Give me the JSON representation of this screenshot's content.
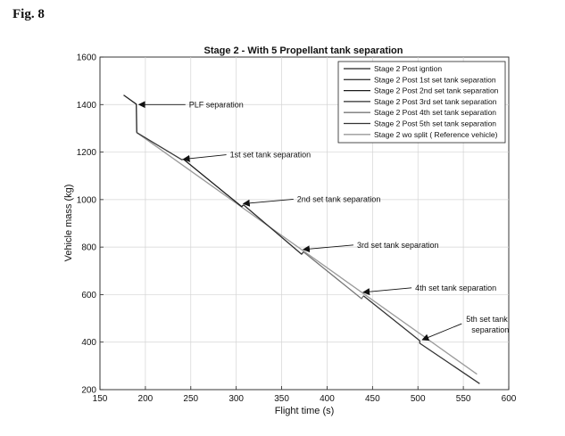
{
  "figure_label": "Fig. 8",
  "chart_data": {
    "type": "line",
    "title": "Stage 2 - With 5 Propellant tank separation",
    "xlabel": "Flight time (s)",
    "ylabel": "Vehicle mass (kg)",
    "xlim": [
      150,
      600
    ],
    "ylim": [
      200,
      1600
    ],
    "xticks": [
      150,
      200,
      250,
      300,
      350,
      400,
      450,
      500,
      550,
      600
    ],
    "yticks": [
      200,
      400,
      600,
      800,
      1000,
      1200,
      1400,
      1600
    ],
    "grid": true,
    "legend_position": "top-right",
    "series": [
      {
        "name": "Stage 2 Post igntion",
        "color": "#222222",
        "x": [
          176,
          190,
          190,
          190.5
        ],
        "y": [
          1440,
          1402,
          1402,
          1282
        ]
      },
      {
        "name": "Stage 2 Post 1st set tank separation",
        "color": "#3a3a3a",
        "x": [
          190.5,
          240,
          242
        ],
        "y": [
          1282,
          1168,
          1170
        ]
      },
      {
        "name": "Stage 2 Post 2nd set tank separation",
        "color": "#1a1a1a",
        "x": [
          242,
          306,
          308
        ],
        "y": [
          1170,
          970,
          978
        ]
      },
      {
        "name": "Stage 2 Post 3rd set tank separation",
        "color": "#2c2c2c",
        "x": [
          308,
          372,
          374
        ],
        "y": [
          978,
          770,
          780
        ]
      },
      {
        "name": "Stage 2 Post 4th set tank separation",
        "color": "#777777",
        "x": [
          374,
          438,
          440
        ],
        "y": [
          780,
          583,
          595
        ]
      },
      {
        "name": "Stage 2 Post 5th set tank separation",
        "color": "#333333",
        "x": [
          440,
          502,
          502,
          568
        ],
        "y": [
          595,
          406,
          395,
          225
        ]
      },
      {
        "name": "Stage 2 wo split ( Reference vehicle)",
        "color": "#9a9a9a",
        "x": [
          190.5,
          565
        ],
        "y": [
          1282,
          265
        ]
      }
    ],
    "annotations": [
      {
        "text": "PLF separation",
        "x": 191,
        "y": 1400
      },
      {
        "text": "1st set tank separation",
        "x": 240,
        "y": 1170
      },
      {
        "text": "2nd set tank separation",
        "x": 306,
        "y": 983
      },
      {
        "text": "3rd set tank separation",
        "x": 372,
        "y": 790
      },
      {
        "text": "4th set tank separation",
        "x": 438,
        "y": 610
      },
      {
        "text": "5th set tank separation",
        "x": 503,
        "y": 410
      }
    ]
  }
}
